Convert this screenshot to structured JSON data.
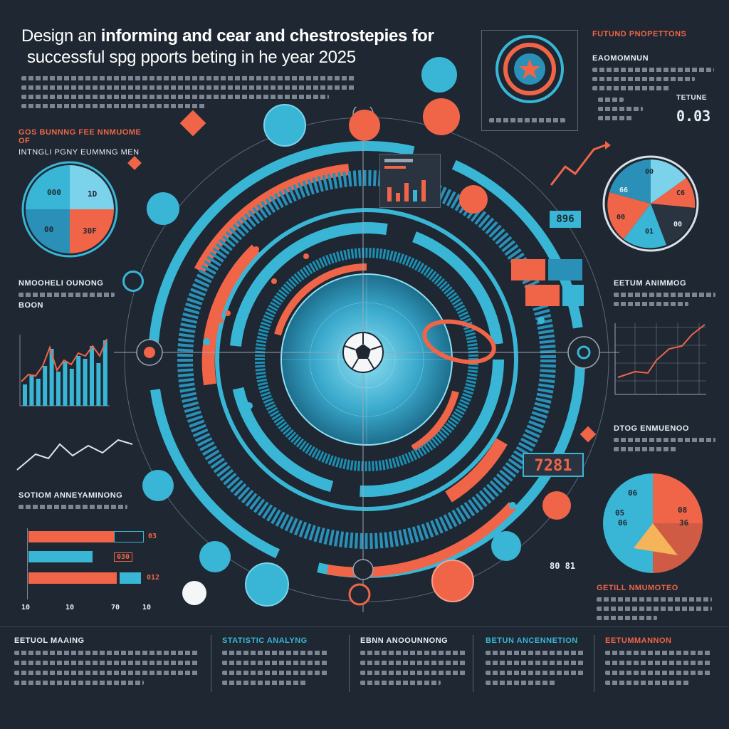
{
  "header": {
    "title_line1_a": "Design an",
    "title_line1_b": "informing and cear and chestrostepies for",
    "title_line2": "successful spg pports beting in he year 2025"
  },
  "right_panel": {
    "heading": "Futund pnopettons",
    "subheading": "Eaomomnun",
    "label": "Tetune",
    "value": "0.03"
  },
  "left_panel": {
    "heading": "Gos bunnng fee nnmuome of",
    "subheading": "Intngli pgny eummng men"
  },
  "pie_left": {
    "labels": [
      "000",
      "1D",
      "00",
      "30F"
    ]
  },
  "pie_right_top": {
    "labels": [
      "00",
      "C6",
      "00",
      "01",
      "00",
      "66"
    ]
  },
  "pie_right_bottom": {
    "labels": [
      "06",
      "05",
      "08",
      "06",
      "36"
    ]
  },
  "left_section": {
    "heading1": "Nmooheli ounong",
    "sub1": "Boon",
    "heading2": "Sotiom anneyaminong",
    "bars_values": [
      "03",
      "030",
      "012"
    ],
    "axis_labels": [
      "10",
      "10",
      "70",
      "10"
    ]
  },
  "right_section": {
    "heading1": "Eetum animmog",
    "heading2": "Dtog enmuenoo",
    "heading3": "Getill nmumoteo",
    "value_box1": "896",
    "value_box2": "7281",
    "side_value": "80 81"
  },
  "footer": {
    "col1": "Eetuol maaing",
    "col2": "Statistic analyng",
    "col3": "Ebnn anoounnong",
    "col4": "Betun ancennetion",
    "col5": "Eetummannon"
  },
  "colors": {
    "background": "#1e2732",
    "cyan": "#39b6d6",
    "orange": "#f06548",
    "dark": "#2a3340"
  }
}
